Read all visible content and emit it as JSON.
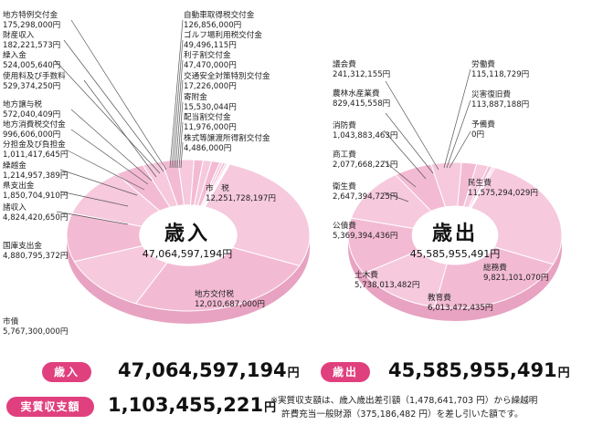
{
  "chart_data": [
    {
      "type": "pie",
      "title": "歳入",
      "total_label": "47,064,597,194円",
      "slices": [
        {
          "name": "市　税",
          "value": "12,251,728,197円",
          "amount": 12251728197
        },
        {
          "name": "地方交付税",
          "value": "12,010,687,000円",
          "amount": 12010687000
        },
        {
          "name": "市債",
          "value": "5,767,300,000円",
          "amount": 5767300000
        },
        {
          "name": "国庫支出金",
          "value": "4,880,795,372円",
          "amount": 4880795372
        },
        {
          "name": "諸収入",
          "value": "4,824,420,650円",
          "amount": 4824420650
        },
        {
          "name": "県支出金",
          "value": "1,850,704,910円",
          "amount": 1850704910
        },
        {
          "name": "繰越金",
          "value": "1,214,957,389円",
          "amount": 1214957389
        },
        {
          "name": "分担金及び負担金",
          "value": "1,011,417,645円",
          "amount": 1011417645
        },
        {
          "name": "地方消費税交付金",
          "value": "996,606,000円",
          "amount": 996606000
        },
        {
          "name": "地方譲与税",
          "value": "572,040,409円",
          "amount": 572040409
        },
        {
          "name": "使用料及び手数料",
          "value": "529,374,250円",
          "amount": 529374250
        },
        {
          "name": "繰入金",
          "value": "524,005,640円",
          "amount": 524005640
        },
        {
          "name": "財産収入",
          "value": "182,221,573円",
          "amount": 182221573
        },
        {
          "name": "地方特例交付金",
          "value": "175,298,000円",
          "amount": 175298000
        },
        {
          "name": "自動車取得税交付金",
          "value": "126,856,000円",
          "amount": 126856000
        },
        {
          "name": "ゴルフ場利用税交付金",
          "value": "49,496,115円",
          "amount": 49496115
        },
        {
          "name": "利子割交付金",
          "value": "47,470,000円",
          "amount": 47470000
        },
        {
          "name": "交通安全対策特別交付金",
          "value": "17,226,000円",
          "amount": 17226000
        },
        {
          "name": "寄附金",
          "value": "15,530,044円",
          "amount": 15530044
        },
        {
          "name": "配当割交付金",
          "value": "11,976,000円",
          "amount": 11976000
        },
        {
          "name": "株式等譲渡所得割交付金",
          "value": "4,486,000円",
          "amount": 4486000
        }
      ]
    },
    {
      "type": "pie",
      "title": "歳出",
      "total_label": "45,585,955,491円",
      "slices": [
        {
          "name": "民生費",
          "value": "11,575,294,029円",
          "amount": 11575294029
        },
        {
          "name": "総務費",
          "value": "9,821,101,070円",
          "amount": 9821101070
        },
        {
          "name": "教育費",
          "value": "6,013,472,435円",
          "amount": 6013472435
        },
        {
          "name": "土木費",
          "value": "5,738,013,482円",
          "amount": 5738013482
        },
        {
          "name": "公債費",
          "value": "5,369,394,436円",
          "amount": 5369394436
        },
        {
          "name": "衛生費",
          "value": "2,647,394,725円",
          "amount": 2647394725
        },
        {
          "name": "商工費",
          "value": "2,077,668,221円",
          "amount": 2077668221
        },
        {
          "name": "消防費",
          "value": "1,043,883,463円",
          "amount": 1043883463
        },
        {
          "name": "農林水産業費",
          "value": "829,415,558円",
          "amount": 829415558
        },
        {
          "name": "議会費",
          "value": "241,312,155円",
          "amount": 241312155
        },
        {
          "name": "労働費",
          "value": "115,118,729円",
          "amount": 115118729
        },
        {
          "name": "災害復旧費",
          "value": "113,887,188円",
          "amount": 113887188
        },
        {
          "name": "予備費",
          "value": "0円",
          "amount": 0
        }
      ]
    }
  ],
  "summary": {
    "revenue_label": "歳入",
    "revenue_value": "47,064,597,194",
    "expenditure_label": "歳出",
    "expenditure_value": "45,585,955,491",
    "net_label": "実質収支額",
    "net_value": "1,103,455,221",
    "unit": "円",
    "note_line1": "※実質収支額は、歳入歳出差引額（1,478,641,703 円）から繰越明",
    "note_line2": "許費充当一般財源（375,186,482 円）を差し引いた額です。"
  },
  "colors": {
    "slice_fill": "#f6c9dd",
    "slice_fill_alt": "#f3bbd3",
    "slice_side": "#e7a3c1",
    "slice_edge": "#ffffff",
    "leader": "#555555",
    "accent": "#e0407e"
  }
}
